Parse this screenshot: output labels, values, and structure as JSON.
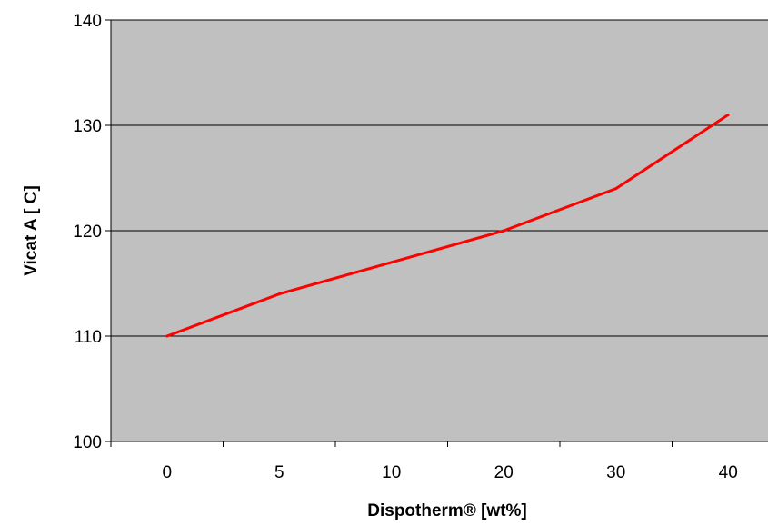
{
  "chart_data": {
    "type": "line",
    "title": "",
    "xlabel": "Dispotherm® [wt%]",
    "ylabel": "Vicat A [ C]",
    "categories": [
      "0",
      "5",
      "10",
      "20",
      "30",
      "40"
    ],
    "series": [
      {
        "values": [
          110,
          114,
          117,
          120,
          124,
          131
        ]
      }
    ],
    "ylim": [
      100,
      140
    ],
    "yticks": [
      100,
      110,
      120,
      130,
      140
    ],
    "grid": "horizontal",
    "legend": "none",
    "colors": {
      "plot_background": "#c0c0c0",
      "line": "#ff0000",
      "grid": "#000000",
      "axis": "#000000"
    }
  }
}
